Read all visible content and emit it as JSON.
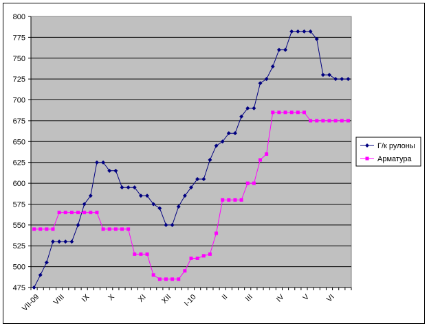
{
  "chart_data": {
    "type": "line",
    "ylim": [
      475,
      800
    ],
    "y_ticks": [
      475,
      500,
      525,
      550,
      575,
      600,
      625,
      650,
      675,
      700,
      725,
      750,
      775,
      800
    ],
    "grid": true,
    "plot_background": "#c0c0c0",
    "legend_placement": "right",
    "x_tick_labels": [
      "VII-09",
      "VIII",
      "IX",
      "X",
      "XI",
      "XII",
      "I-10",
      "II",
      "III",
      "IV",
      "V",
      "VI"
    ],
    "series": [
      {
        "name": "Г/к рулоны",
        "color": "#000080",
        "marker": "diamond",
        "values": [
          475,
          490,
          505,
          530,
          530,
          530,
          530,
          550,
          575,
          585,
          625,
          625,
          615,
          615,
          595,
          595,
          595,
          585,
          585,
          575,
          570,
          550,
          550,
          572,
          585,
          595,
          605,
          605,
          628,
          645,
          650,
          660,
          660,
          680,
          690,
          690,
          720,
          725,
          740,
          760,
          760,
          782,
          782,
          782,
          782,
          773,
          730,
          730,
          725,
          725,
          725
        ]
      },
      {
        "name": "Арматура",
        "color": "#ff00ff",
        "marker": "square",
        "values": [
          545,
          545,
          545,
          545,
          565,
          565,
          565,
          565,
          565,
          565,
          565,
          545,
          545,
          545,
          545,
          545,
          515,
          515,
          515,
          490,
          485,
          485,
          485,
          485,
          495,
          510,
          510,
          513,
          515,
          540,
          580,
          580,
          580,
          580,
          600,
          600,
          628,
          635,
          685,
          685,
          685,
          685,
          685,
          685,
          675,
          675,
          675,
          675,
          675,
          675,
          675
        ]
      }
    ]
  }
}
